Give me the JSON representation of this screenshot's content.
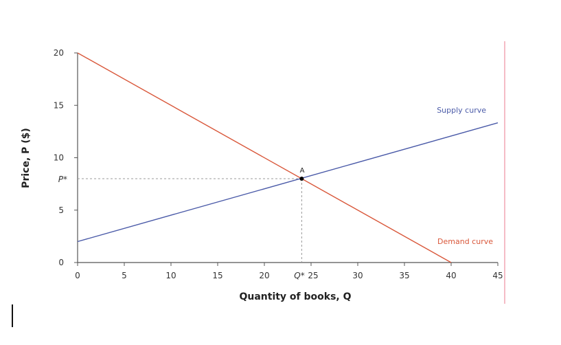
{
  "chart_data": {
    "type": "line",
    "xlabel": "Quantity of books, Q",
    "ylabel": "Price, P ($)",
    "xlim": [
      0,
      45
    ],
    "ylim": [
      0,
      20
    ],
    "x_ticks": [
      "0",
      "5",
      "10",
      "15",
      "20",
      "25",
      "30",
      "35",
      "40",
      "45"
    ],
    "x_tick_values": [
      0,
      5,
      10,
      15,
      20,
      25,
      30,
      35,
      40,
      45
    ],
    "y_ticks": [
      "0",
      "5",
      "10",
      "15",
      "20"
    ],
    "y_tick_values": [
      0,
      5,
      10,
      15,
      20
    ],
    "grid": false,
    "series": [
      {
        "name": "Supply curve",
        "color": "#4a5aa8",
        "x": [
          0,
          45
        ],
        "y": [
          2,
          13.33
        ]
      },
      {
        "name": "Demand curve",
        "color": "#d9573a",
        "x": [
          0,
          40
        ],
        "y": [
          20,
          0
        ]
      }
    ],
    "equilibrium": {
      "label": "A",
      "x": 24,
      "y": 8,
      "x_marker": "Q*",
      "y_marker": "P*"
    },
    "colors": {
      "axis": "#555555",
      "guide": "#999999",
      "right_border": "#f2a6b4",
      "point": "#000000"
    }
  }
}
